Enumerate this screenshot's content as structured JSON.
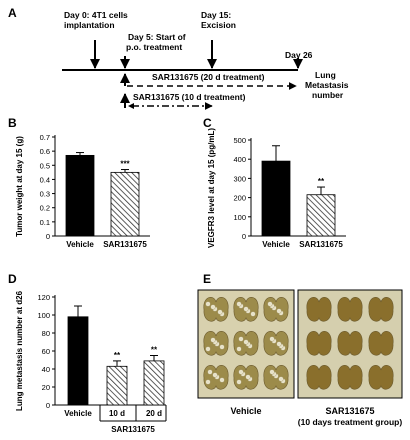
{
  "panels": {
    "A": "A",
    "B": "B",
    "C": "C",
    "D": "D",
    "E": "E"
  },
  "timeline": {
    "day0": "Day 0: 4T1 cells",
    "day0b": "implantation",
    "day5": "Day 5: Start of",
    "day5b": "p.o. treatment",
    "day15": "Day 15:",
    "day15b": "Excision",
    "day26": "Day 26",
    "endpoint1": "Lung",
    "endpoint2": "Metastasis",
    "endpoint3": "number",
    "arm20": "SAR131675 (20 d treatment)",
    "arm10": "SAR131675 (10 d treatment)"
  },
  "photo": {
    "caption_left": "Vehicle",
    "caption_right1": "SAR131675",
    "caption_right2": "(10 days treatment group)"
  },
  "chart_data": [
    {
      "type": "bar",
      "panel": "B",
      "categories": [
        "Vehicle",
        "SAR131675"
      ],
      "values": [
        0.57,
        0.45
      ],
      "errors": [
        0.02,
        0.02
      ],
      "significance": [
        "",
        "***"
      ],
      "ylabel": "Tumor weight at day 15 (g)",
      "ylim": [
        0,
        0.7
      ],
      "yticks": [
        "0",
        "0.1",
        "0.2",
        "0.3",
        "0.4",
        "0.5",
        "0.6",
        "0.7"
      ]
    },
    {
      "type": "bar",
      "panel": "C",
      "categories": [
        "Vehicle",
        "SAR131675"
      ],
      "values": [
        390,
        215
      ],
      "errors": [
        80,
        40
      ],
      "significance": [
        "",
        "**"
      ],
      "ylabel": "VEGFR3 level at day 15 (pg/mL)",
      "ylim": [
        0,
        500
      ],
      "yticks": [
        "0",
        "100",
        "200",
        "300",
        "400",
        "500"
      ]
    },
    {
      "type": "bar",
      "panel": "D",
      "categories": [
        "Vehicle",
        "10 d",
        "20 d"
      ],
      "group_label": "SAR131675",
      "values": [
        98,
        43,
        49
      ],
      "errors": [
        12,
        6,
        6
      ],
      "significance": [
        "",
        "**",
        "**"
      ],
      "ylabel": "Lung metastasis number at d26",
      "ylim": [
        0,
        120
      ],
      "yticks": [
        "0",
        "20",
        "40",
        "60",
        "80",
        "100",
        "120"
      ]
    }
  ]
}
